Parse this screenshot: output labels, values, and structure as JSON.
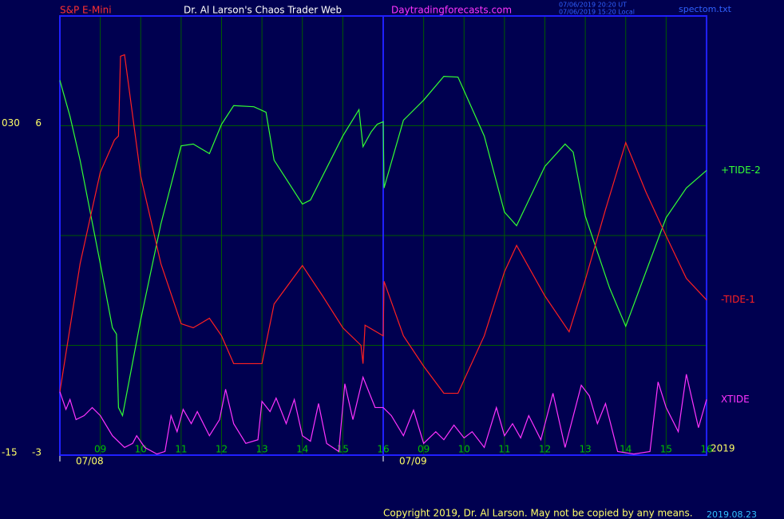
{
  "chart_data": {
    "type": "line",
    "instrument": "S&P E-Mini",
    "title": "Dr. Al Larson's Chaos Trader Web",
    "site": "Daytradingforecasts.com",
    "timestamps": [
      "07/06/2019 20:20 UT",
      "07/06/2019 15:20 Local"
    ],
    "file": "spectom.txt",
    "year_label": "2019",
    "copyright": "Copyright 2019, Dr. Al Larson. May not be copied by any means.",
    "version": "2019.08.23",
    "xlim": [
      0,
      16
    ],
    "ylim": [
      -3,
      9
    ],
    "yticks": [
      -3,
      6
    ],
    "outer_yticks": [
      {
        "value": -3,
        "label": "-15"
      },
      {
        "value": 6,
        "label": "030"
      }
    ],
    "xticks": [
      {
        "value": 1,
        "label": "09"
      },
      {
        "value": 2,
        "label": "10"
      },
      {
        "value": 3,
        "label": "11"
      },
      {
        "value": 4,
        "label": "12"
      },
      {
        "value": 5,
        "label": "13"
      },
      {
        "value": 6,
        "label": "14"
      },
      {
        "value": 7,
        "label": "15"
      },
      {
        "value": 8,
        "label": "16"
      },
      {
        "value": 9,
        "label": "09"
      },
      {
        "value": 10,
        "label": "10"
      },
      {
        "value": 11,
        "label": "11"
      },
      {
        "value": 12,
        "label": "12"
      },
      {
        "value": 13,
        "label": "13"
      },
      {
        "value": 14,
        "label": "14"
      },
      {
        "value": 15,
        "label": "15"
      },
      {
        "value": 16,
        "label": "16"
      }
    ],
    "date_labels": [
      {
        "value": 0,
        "label": "07/08"
      },
      {
        "value": 8,
        "label": "07/09"
      }
    ],
    "grid": true,
    "series": [
      {
        "name": "+TIDE-2",
        "color": "#33ff33",
        "x": [
          0,
          0.25,
          0.5,
          1,
          1.3,
          1.4,
          1.45,
          1.55,
          2,
          2.5,
          3,
          3.3,
          3.7,
          4,
          4.3,
          4.8,
          5.1,
          5.3,
          6,
          6.2,
          7,
          7.4,
          7.5,
          7.7,
          7.85,
          8,
          8.02,
          8.5,
          9,
          9.5,
          9.85,
          10.5,
          11,
          11.3,
          12,
          12.5,
          12.7,
          13,
          13.6,
          14,
          14.5,
          15,
          15.5,
          16
        ],
        "values": [
          7.24,
          6.26,
          5.06,
          2.23,
          0.48,
          0.31,
          -1.7,
          -1.92,
          0.7,
          3.32,
          5.45,
          5.5,
          5.24,
          6.04,
          6.55,
          6.52,
          6.37,
          5.06,
          3.86,
          3.97,
          5.72,
          6.44,
          5.43,
          5.83,
          6.04,
          6.11,
          4.3,
          6.15,
          6.7,
          7.35,
          7.33,
          5.72,
          3.64,
          3.27,
          4.89,
          5.5,
          5.28,
          3.53,
          1.57,
          0.52,
          2.01,
          3.49,
          4.3,
          4.78
        ]
      },
      {
        "name": "-TIDE-1",
        "color": "#ff2020",
        "x": [
          0,
          0.5,
          1,
          1.35,
          1.45,
          1.5,
          1.6,
          2,
          2.5,
          3,
          3.3,
          3.7,
          4,
          4.3,
          5,
          5.3,
          6,
          6.5,
          7,
          7.45,
          7.5,
          7.55,
          8,
          8.02,
          8.5,
          9,
          9.5,
          9.85,
          10.5,
          11,
          11.3,
          12,
          12.6,
          13,
          13.5,
          14,
          14.5,
          15,
          15.5,
          16
        ],
        "values": [
          -1.27,
          2.23,
          4.73,
          5.61,
          5.72,
          7.9,
          7.94,
          4.62,
          2.23,
          0.59,
          0.48,
          0.74,
          0.26,
          -0.5,
          -0.5,
          1.13,
          2.18,
          1.35,
          0.48,
          0,
          -0.5,
          0.55,
          0.26,
          1.75,
          0.26,
          -0.57,
          -1.31,
          -1.31,
          0.26,
          2.01,
          2.73,
          1.35,
          0.37,
          1.79,
          3.71,
          5.54,
          4.19,
          2.99,
          1.83,
          1.24
        ]
      },
      {
        "name": "XTIDE",
        "color": "#ff33ff",
        "x": [
          0,
          0.15,
          0.25,
          0.4,
          0.6,
          0.8,
          1,
          1.3,
          1.6,
          1.8,
          1.9,
          2.1,
          2.4,
          2.6,
          2.75,
          2.9,
          3.05,
          3.25,
          3.4,
          3.55,
          3.7,
          3.95,
          4.1,
          4.3,
          4.6,
          4.9,
          5,
          5.2,
          5.35,
          5.6,
          5.8,
          6,
          6.2,
          6.4,
          6.6,
          6.9,
          7.05,
          7.25,
          7.5,
          7.8,
          8,
          8.2,
          8.5,
          8.75,
          9,
          9.3,
          9.5,
          9.75,
          10,
          10.2,
          10.5,
          10.8,
          11,
          11.2,
          11.4,
          11.6,
          11.9,
          12.2,
          12.5,
          12.9,
          13.1,
          13.3,
          13.5,
          13.8,
          14.2,
          14.6,
          14.8,
          15,
          15.3,
          15.5,
          15.8,
          16
        ],
        "values": [
          -1.27,
          -1.75,
          -1.48,
          -2.03,
          -1.92,
          -1.7,
          -1.92,
          -2.47,
          -2.79,
          -2.68,
          -2.47,
          -2.79,
          -2.97,
          -2.9,
          -1.92,
          -2.36,
          -1.75,
          -2.14,
          -1.81,
          -2.14,
          -2.47,
          -2.03,
          -1.2,
          -2.14,
          -2.68,
          -2.58,
          -1.53,
          -1.81,
          -1.44,
          -2.14,
          -1.48,
          -2.47,
          -2.62,
          -1.59,
          -2.68,
          -2.9,
          -1.05,
          -2.03,
          -0.87,
          -1.7,
          -1.7,
          -1.92,
          -2.47,
          -1.77,
          -2.68,
          -2.36,
          -2.58,
          -2.18,
          -2.53,
          -2.36,
          -2.79,
          -1.7,
          -2.47,
          -2.14,
          -2.53,
          -1.92,
          -2.58,
          -1.31,
          -2.79,
          -1.09,
          -1.38,
          -2.14,
          -1.59,
          -2.9,
          -2.97,
          -2.9,
          -1.0,
          -1.7,
          -2.36,
          -0.79,
          -2.25,
          -1.48
        ]
      }
    ]
  }
}
